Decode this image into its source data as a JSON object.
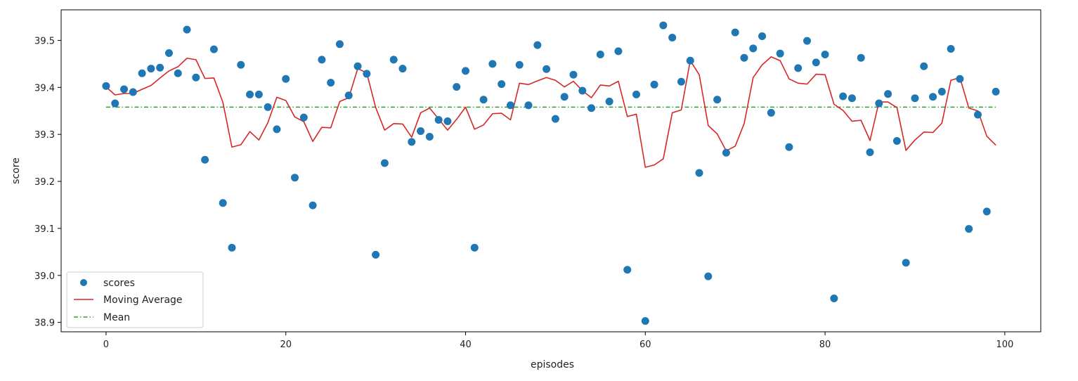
{
  "chart_data": {
    "type": "line",
    "title": "",
    "xlabel": "episodes",
    "ylabel": "score",
    "xlim": [
      -5,
      104
    ],
    "ylim": [
      38.88,
      39.565
    ],
    "x_ticks": [
      0,
      20,
      40,
      60,
      80,
      100
    ],
    "x_tick_labels": [
      "0",
      "20",
      "40",
      "60",
      "80",
      "100"
    ],
    "y_ticks": [
      38.9,
      39.0,
      39.1,
      39.2,
      39.3,
      39.4,
      39.5
    ],
    "y_tick_labels": [
      "38.9",
      "39.0",
      "39.1",
      "39.2",
      "39.3",
      "39.4",
      "39.5"
    ],
    "grid": false,
    "legend_position": "lower-left",
    "series": [
      {
        "name": "scores",
        "style": "markers",
        "color": "#1f77b4",
        "x": [
          0,
          1,
          2,
          3,
          4,
          5,
          6,
          7,
          8,
          9,
          10,
          11,
          12,
          13,
          14,
          15,
          16,
          17,
          18,
          19,
          20,
          21,
          22,
          23,
          24,
          25,
          26,
          27,
          28,
          29,
          30,
          31,
          32,
          33,
          34,
          35,
          36,
          37,
          38,
          39,
          40,
          41,
          42,
          43,
          44,
          45,
          46,
          47,
          48,
          49,
          50,
          51,
          52,
          53,
          54,
          55,
          56,
          57,
          58,
          59,
          60,
          61,
          62,
          63,
          64,
          65,
          66,
          67,
          68,
          69,
          70,
          71,
          72,
          73,
          74,
          75,
          76,
          77,
          78,
          79,
          80,
          81,
          82,
          83,
          84,
          85,
          86,
          87,
          88,
          89,
          90,
          91,
          92,
          93,
          94,
          95,
          96,
          97,
          98,
          99
        ],
        "y": [
          39.403,
          39.366,
          39.396,
          39.39,
          39.43,
          39.44,
          39.442,
          39.473,
          39.43,
          39.523,
          39.421,
          39.246,
          39.481,
          39.154,
          39.059,
          39.448,
          39.385,
          39.385,
          39.358,
          39.311,
          39.418,
          39.208,
          39.336,
          39.149,
          39.459,
          39.41,
          39.492,
          39.383,
          39.445,
          39.429,
          39.044,
          39.239,
          39.459,
          39.44,
          39.284,
          39.307,
          39.295,
          39.331,
          39.328,
          39.401,
          39.435,
          39.059,
          39.374,
          39.45,
          39.407,
          39.362,
          39.448,
          39.362,
          39.49,
          39.439,
          39.333,
          39.38,
          39.427,
          39.393,
          39.356,
          39.47,
          39.37,
          39.477,
          39.012,
          39.385,
          38.903,
          39.406,
          39.532,
          39.506,
          39.412,
          39.457,
          39.218,
          38.998,
          39.374,
          39.261,
          39.517,
          39.463,
          39.483,
          39.509,
          39.346,
          39.472,
          39.273,
          39.441,
          39.499,
          39.453,
          39.47,
          38.951,
          39.381,
          39.377,
          39.463,
          39.262,
          39.366,
          39.386,
          39.286,
          39.027,
          39.377,
          39.445,
          39.38,
          39.391,
          39.482,
          39.418,
          39.099,
          39.342,
          39.136,
          39.391
        ]
      },
      {
        "name": "Moving Average",
        "style": "line",
        "color": "#d62728",
        "x": [
          0,
          1,
          2,
          3,
          4,
          5,
          6,
          7,
          8,
          9,
          10,
          11,
          12,
          13,
          14,
          15,
          16,
          17,
          18,
          19,
          20,
          21,
          22,
          23,
          24,
          25,
          26,
          27,
          28,
          29,
          30,
          31,
          32,
          33,
          34,
          35,
          36,
          37,
          38,
          39,
          40,
          41,
          42,
          43,
          44,
          45,
          46,
          47,
          48,
          49,
          50,
          51,
          52,
          53,
          54,
          55,
          56,
          57,
          58,
          59,
          60,
          61,
          62,
          63,
          64,
          65,
          66,
          67,
          68,
          69,
          70,
          71,
          72,
          73,
          74,
          75,
          76,
          77,
          78,
          79,
          80,
          81,
          82,
          83,
          84,
          85,
          86,
          87,
          88,
          89,
          90,
          91,
          92,
          93,
          94,
          95,
          96,
          97,
          98,
          99
        ],
        "y": [
          39.401,
          39.384,
          39.387,
          39.387,
          39.396,
          39.404,
          39.42,
          39.435,
          39.444,
          39.462,
          39.459,
          39.419,
          39.42,
          39.368,
          39.273,
          39.278,
          39.306,
          39.288,
          39.325,
          39.379,
          39.372,
          39.337,
          39.327,
          39.285,
          39.315,
          39.314,
          39.37,
          39.378,
          39.44,
          39.431,
          39.357,
          39.309,
          39.323,
          39.322,
          39.294,
          39.346,
          39.356,
          39.333,
          39.309,
          39.332,
          39.358,
          39.311,
          39.32,
          39.344,
          39.345,
          39.331,
          39.409,
          39.406,
          39.414,
          39.421,
          39.415,
          39.401,
          39.413,
          39.393,
          39.378,
          39.405,
          39.403,
          39.413,
          39.338,
          39.343,
          39.23,
          39.235,
          39.248,
          39.346,
          39.352,
          39.457,
          39.427,
          39.319,
          39.301,
          39.265,
          39.275,
          39.323,
          39.421,
          39.448,
          39.465,
          39.457,
          39.418,
          39.409,
          39.407,
          39.428,
          39.427,
          39.364,
          39.351,
          39.328,
          39.33,
          39.287,
          39.369,
          39.369,
          39.357,
          39.266,
          39.288,
          39.305,
          39.304,
          39.324,
          39.415,
          39.421,
          39.356,
          39.35,
          39.296,
          39.277
        ]
      },
      {
        "name": "Mean",
        "style": "dash-dot",
        "color": "#2ca02c",
        "x": [
          0,
          99
        ],
        "y": [
          39.358,
          39.358
        ]
      }
    ]
  }
}
